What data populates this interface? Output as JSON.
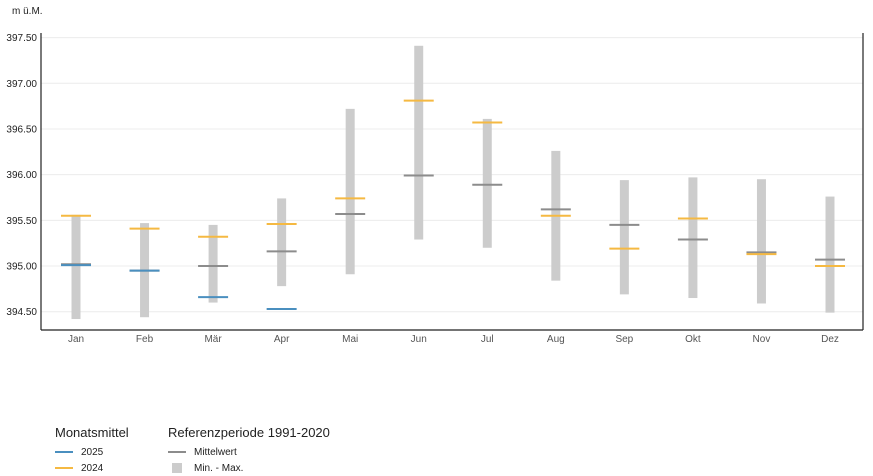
{
  "unit_label": "m ü.M.",
  "colors": {
    "y2025": "#4a8fbf",
    "y2024": "#f5b942",
    "mean": "#8c8c8c",
    "range": "#cccccc",
    "axis": "#222222",
    "grid": "#ececec"
  },
  "legend": {
    "monthly_title": "Monatsmittel",
    "y2025_label": "2025",
    "y2024_label": "2024",
    "reference_title": "Referenzperiode 1991-2020",
    "mean_label": "Mittelwert",
    "range_label": "Min. - Max."
  },
  "chart_data": {
    "type": "range",
    "categories": [
      "Jan",
      "Feb",
      "Mär",
      "Apr",
      "Mai",
      "Jun",
      "Jul",
      "Aug",
      "Sep",
      "Okt",
      "Nov",
      "Dez"
    ],
    "ylim": [
      394.3,
      397.55
    ],
    "yticks": [
      "394.50",
      "395.00",
      "395.50",
      "396.00",
      "396.50",
      "397.00",
      "397.50"
    ],
    "grid": true,
    "series": [
      {
        "name": "Min. - Max.",
        "min": [
          394.42,
          394.44,
          394.6,
          394.78,
          394.91,
          395.29,
          395.2,
          394.84,
          394.69,
          394.65,
          394.59,
          394.49
        ],
        "max": [
          395.56,
          395.47,
          395.45,
          395.74,
          396.72,
          397.41,
          396.61,
          396.26,
          395.94,
          395.97,
          395.95,
          395.76
        ]
      },
      {
        "name": "Mittelwert",
        "values": [
          395.02,
          394.95,
          395.0,
          395.16,
          395.57,
          395.99,
          395.89,
          395.62,
          395.45,
          395.29,
          395.15,
          395.07
        ]
      },
      {
        "name": "2024",
        "values": [
          395.55,
          395.41,
          395.32,
          395.46,
          395.74,
          396.81,
          396.57,
          395.55,
          395.19,
          395.52,
          395.13,
          395.0
        ]
      },
      {
        "name": "2025",
        "values": [
          395.01,
          394.95,
          394.66,
          394.53,
          null,
          null,
          null,
          null,
          null,
          null,
          null,
          null
        ]
      }
    ]
  }
}
